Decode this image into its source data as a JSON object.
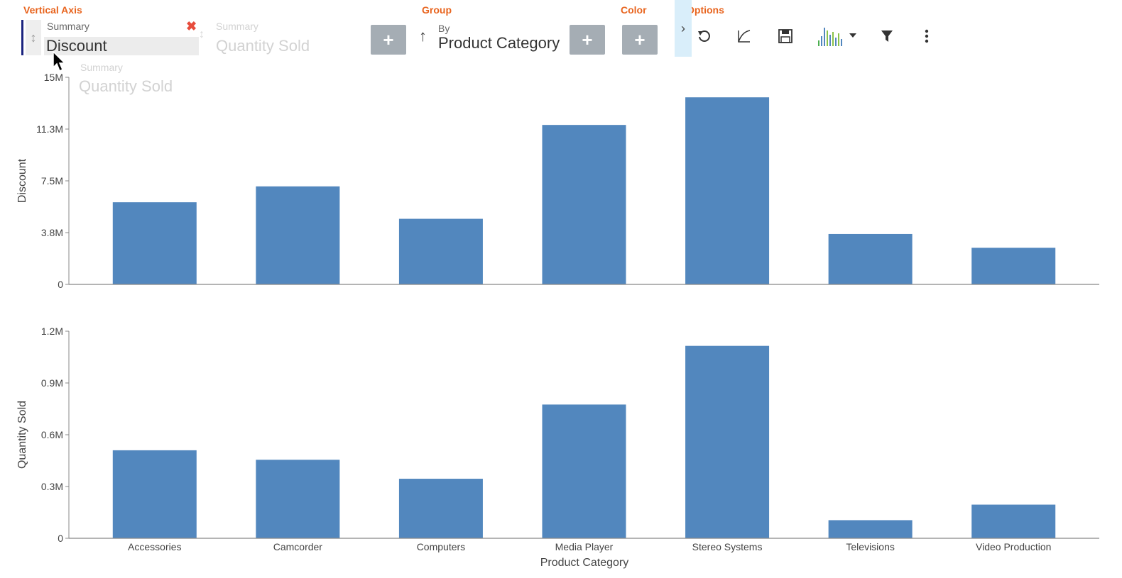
{
  "toolbar": {
    "vertical_axis_label": "Vertical Axis",
    "group_label": "Group",
    "color_label": "Color",
    "options_label": "Options",
    "vertical_axis_field": {
      "caption": "Summary",
      "value": "Discount"
    },
    "ghost_field": {
      "caption": "Summary",
      "value": "Quantity Sold"
    },
    "drag_ghost": {
      "caption": "Summary",
      "value": "Quantity Sold"
    },
    "group_field": {
      "caption": "By",
      "value": "Product Category"
    },
    "expander_glyph": "›",
    "close_glyph": "✖",
    "add_glyph": "+",
    "sort_glyph": "↑",
    "handle_glyph": "↕",
    "icons": [
      "undo-icon",
      "curve-icon",
      "save-icon",
      "chart-type-icon",
      "filter-icon",
      "more-icon"
    ]
  },
  "chart_data": [
    {
      "type": "bar",
      "categories": [
        "Accessories",
        "Camcorder",
        "Computers",
        "Media Player",
        "Stereo Systems",
        "Televisions",
        "Video Production"
      ],
      "values": [
        5950000,
        7100000,
        4750000,
        11550000,
        13550000,
        3650000,
        2650000
      ],
      "ylabel": "Discount",
      "xlabel": "",
      "ylim": [
        0,
        15000000
      ],
      "ytick_labels": [
        "0",
        "3.8M",
        "7.5M",
        "11.3M",
        "15M"
      ],
      "color": "#5287be"
    },
    {
      "type": "bar",
      "categories": [
        "Accessories",
        "Camcorder",
        "Computers",
        "Media Player",
        "Stereo Systems",
        "Televisions",
        "Video Production"
      ],
      "values": [
        510000,
        455000,
        345000,
        775000,
        1115000,
        105000,
        195000
      ],
      "ylabel": "Quantity Sold",
      "xlabel": "Product Category",
      "ylim": [
        0,
        1200000
      ],
      "ytick_labels": [
        "0",
        "0.3M",
        "0.6M",
        "0.9M",
        "1.2M"
      ],
      "color": "#5287be"
    }
  ]
}
